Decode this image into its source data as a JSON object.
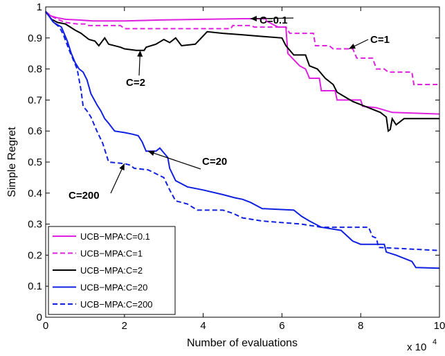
{
  "chart_data": {
    "type": "line",
    "title": "",
    "xlabel": "Number of evaluations",
    "ylabel": "Simple Regret",
    "x_multiplier_base": "x 10",
    "x_multiplier_exp": "4",
    "xlim": [
      0,
      10
    ],
    "ylim": [
      0,
      1
    ],
    "x_ticks": [
      0,
      2,
      4,
      6,
      8,
      10
    ],
    "x_tick_labels": [
      "0",
      "2",
      "4",
      "6",
      "8",
      "10"
    ],
    "y_ticks": [
      0,
      0.1,
      0.2,
      0.3,
      0.4,
      0.5,
      0.6,
      0.7,
      0.8,
      0.9,
      1
    ],
    "y_tick_labels": [
      "0",
      "0.1",
      "0.2",
      "0.3",
      "0.4",
      "0.5",
      "0.6",
      "0.7",
      "0.8",
      "0.9",
      "1"
    ],
    "grid": false,
    "legend_position": "bottom-left",
    "series": [
      {
        "name": "UCB−MPA:C=0.1",
        "color": "#e020e0",
        "dash": "solid",
        "points": [
          [
            0,
            0.98
          ],
          [
            0.08,
            0.975
          ],
          [
            0.15,
            0.97
          ],
          [
            0.3,
            0.965
          ],
          [
            0.5,
            0.96
          ],
          [
            0.8,
            0.958
          ],
          [
            1.2,
            0.955
          ],
          [
            2,
            0.955
          ],
          [
            3,
            0.958
          ],
          [
            4,
            0.96
          ],
          [
            5,
            0.962
          ],
          [
            5.6,
            0.962
          ],
          [
            5.6,
            0.955
          ],
          [
            5.75,
            0.945
          ],
          [
            5.9,
            0.935
          ],
          [
            6.1,
            0.935
          ],
          [
            6.15,
            0.85
          ],
          [
            6.3,
            0.83
          ],
          [
            6.45,
            0.81
          ],
          [
            6.6,
            0.8
          ],
          [
            6.7,
            0.77
          ],
          [
            6.95,
            0.77
          ],
          [
            7.0,
            0.73
          ],
          [
            7.35,
            0.73
          ],
          [
            7.4,
            0.7
          ],
          [
            8.0,
            0.7
          ],
          [
            8.05,
            0.68
          ],
          [
            8.4,
            0.675
          ],
          [
            8.8,
            0.66
          ],
          [
            10,
            0.655
          ]
        ]
      },
      {
        "name": "UCB−MPA:C=1",
        "color": "#e020e0",
        "dash": "dashed",
        "points": [
          [
            0,
            0.985
          ],
          [
            0.15,
            0.97
          ],
          [
            0.3,
            0.96
          ],
          [
            0.5,
            0.95
          ],
          [
            0.8,
            0.945
          ],
          [
            1.0,
            0.945
          ],
          [
            1.1,
            0.94
          ],
          [
            1.9,
            0.94
          ],
          [
            2.0,
            0.93
          ],
          [
            4.7,
            0.93
          ],
          [
            4.75,
            0.94
          ],
          [
            5.2,
            0.94
          ],
          [
            5.3,
            0.935
          ],
          [
            6.1,
            0.935
          ],
          [
            6.2,
            0.915
          ],
          [
            6.8,
            0.915
          ],
          [
            6.85,
            0.875
          ],
          [
            7.2,
            0.875
          ],
          [
            7.3,
            0.865
          ],
          [
            7.8,
            0.865
          ],
          [
            7.9,
            0.835
          ],
          [
            8.3,
            0.835
          ],
          [
            8.4,
            0.8
          ],
          [
            8.6,
            0.8
          ],
          [
            8.7,
            0.79
          ],
          [
            9.3,
            0.79
          ],
          [
            9.35,
            0.75
          ],
          [
            10,
            0.75
          ]
        ]
      },
      {
        "name": "UCB−MPA:C=2",
        "color": "#000000",
        "dash": "solid",
        "points": [
          [
            0,
            0.985
          ],
          [
            0.15,
            0.96
          ],
          [
            0.3,
            0.95
          ],
          [
            0.5,
            0.945
          ],
          [
            0.75,
            0.925
          ],
          [
            0.9,
            0.915
          ],
          [
            1.0,
            0.905
          ],
          [
            1.1,
            0.895
          ],
          [
            1.25,
            0.89
          ],
          [
            1.35,
            0.875
          ],
          [
            1.5,
            0.9
          ],
          [
            1.6,
            0.88
          ],
          [
            1.9,
            0.87
          ],
          [
            2.0,
            0.865
          ],
          [
            2.3,
            0.86
          ],
          [
            2.5,
            0.86
          ],
          [
            2.55,
            0.87
          ],
          [
            2.8,
            0.88
          ],
          [
            3.0,
            0.895
          ],
          [
            3.15,
            0.885
          ],
          [
            3.3,
            0.9
          ],
          [
            3.45,
            0.875
          ],
          [
            3.8,
            0.88
          ],
          [
            3.95,
            0.9
          ],
          [
            4.1,
            0.92
          ],
          [
            4.5,
            0.915
          ],
          [
            5.0,
            0.91
          ],
          [
            5.5,
            0.905
          ],
          [
            6.0,
            0.9
          ],
          [
            6.1,
            0.875
          ],
          [
            6.3,
            0.845
          ],
          [
            6.6,
            0.845
          ],
          [
            6.7,
            0.81
          ],
          [
            6.9,
            0.8
          ],
          [
            7.1,
            0.77
          ],
          [
            7.3,
            0.75
          ],
          [
            7.4,
            0.725
          ],
          [
            7.6,
            0.71
          ],
          [
            7.8,
            0.695
          ],
          [
            8.0,
            0.685
          ],
          [
            8.2,
            0.675
          ],
          [
            8.5,
            0.66
          ],
          [
            8.65,
            0.645
          ],
          [
            8.7,
            0.6
          ],
          [
            8.75,
            0.605
          ],
          [
            8.8,
            0.64
          ],
          [
            8.9,
            0.62
          ],
          [
            9.1,
            0.64
          ],
          [
            10,
            0.64
          ]
        ]
      },
      {
        "name": "UCB−MPA:C=20",
        "color": "#1020e0",
        "dash": "solid",
        "points": [
          [
            0,
            0.985
          ],
          [
            0.2,
            0.95
          ],
          [
            0.4,
            0.935
          ],
          [
            0.55,
            0.89
          ],
          [
            0.65,
            0.85
          ],
          [
            0.75,
            0.82
          ],
          [
            0.85,
            0.8
          ],
          [
            0.95,
            0.79
          ],
          [
            1.05,
            0.765
          ],
          [
            1.15,
            0.72
          ],
          [
            1.3,
            0.685
          ],
          [
            1.4,
            0.665
          ],
          [
            1.5,
            0.64
          ],
          [
            1.6,
            0.625
          ],
          [
            1.75,
            0.6
          ],
          [
            2.0,
            0.595
          ],
          [
            2.2,
            0.59
          ],
          [
            2.35,
            0.585
          ],
          [
            2.45,
            0.565
          ],
          [
            2.55,
            0.535
          ],
          [
            2.8,
            0.535
          ],
          [
            2.9,
            0.545
          ],
          [
            3.0,
            0.53
          ],
          [
            3.1,
            0.515
          ],
          [
            3.15,
            0.48
          ],
          [
            3.3,
            0.44
          ],
          [
            3.6,
            0.42
          ],
          [
            4.0,
            0.41
          ],
          [
            4.5,
            0.395
          ],
          [
            4.8,
            0.385
          ],
          [
            5.0,
            0.38
          ],
          [
            5.2,
            0.37
          ],
          [
            5.5,
            0.35
          ],
          [
            6.3,
            0.345
          ],
          [
            6.5,
            0.325
          ],
          [
            6.7,
            0.31
          ],
          [
            7.0,
            0.29
          ],
          [
            7.5,
            0.28
          ],
          [
            7.8,
            0.245
          ],
          [
            8.0,
            0.235
          ],
          [
            8.6,
            0.235
          ],
          [
            8.65,
            0.21
          ],
          [
            8.9,
            0.2
          ],
          [
            9.3,
            0.18
          ],
          [
            9.4,
            0.16
          ],
          [
            10,
            0.158
          ]
        ]
      },
      {
        "name": "UCB−MPA:C=200",
        "color": "#1020e0",
        "dash": "dashed",
        "points": [
          [
            0,
            0.985
          ],
          [
            0.2,
            0.95
          ],
          [
            0.35,
            0.935
          ],
          [
            0.45,
            0.91
          ],
          [
            0.6,
            0.86
          ],
          [
            0.7,
            0.83
          ],
          [
            0.8,
            0.8
          ],
          [
            0.9,
            0.73
          ],
          [
            0.95,
            0.68
          ],
          [
            1.05,
            0.665
          ],
          [
            1.15,
            0.645
          ],
          [
            1.3,
            0.6
          ],
          [
            1.45,
            0.56
          ],
          [
            1.6,
            0.5
          ],
          [
            2.0,
            0.495
          ],
          [
            2.15,
            0.49
          ],
          [
            2.25,
            0.48
          ],
          [
            2.6,
            0.475
          ],
          [
            3.0,
            0.45
          ],
          [
            3.15,
            0.41
          ],
          [
            3.3,
            0.375
          ],
          [
            3.6,
            0.365
          ],
          [
            3.85,
            0.345
          ],
          [
            4.5,
            0.345
          ],
          [
            4.75,
            0.335
          ],
          [
            5.0,
            0.32
          ],
          [
            5.5,
            0.31
          ],
          [
            6.5,
            0.3
          ],
          [
            7.0,
            0.29
          ],
          [
            8.2,
            0.29
          ],
          [
            8.3,
            0.26
          ],
          [
            8.4,
            0.255
          ],
          [
            8.45,
            0.225
          ],
          [
            10,
            0.215
          ]
        ]
      }
    ],
    "annotations": [
      {
        "text": "C=0.1",
        "arrow_to": [
          5.2,
          0.962
        ]
      },
      {
        "text": "C=1",
        "arrow_to": [
          7.7,
          0.865
        ]
      },
      {
        "text": "C=2",
        "arrow_to": [
          2.4,
          0.86
        ]
      },
      {
        "text": "C=20",
        "arrow_to": [
          2.6,
          0.535
        ]
      },
      {
        "text": "C=200",
        "arrow_to": [
          2.0,
          0.495
        ]
      }
    ]
  }
}
